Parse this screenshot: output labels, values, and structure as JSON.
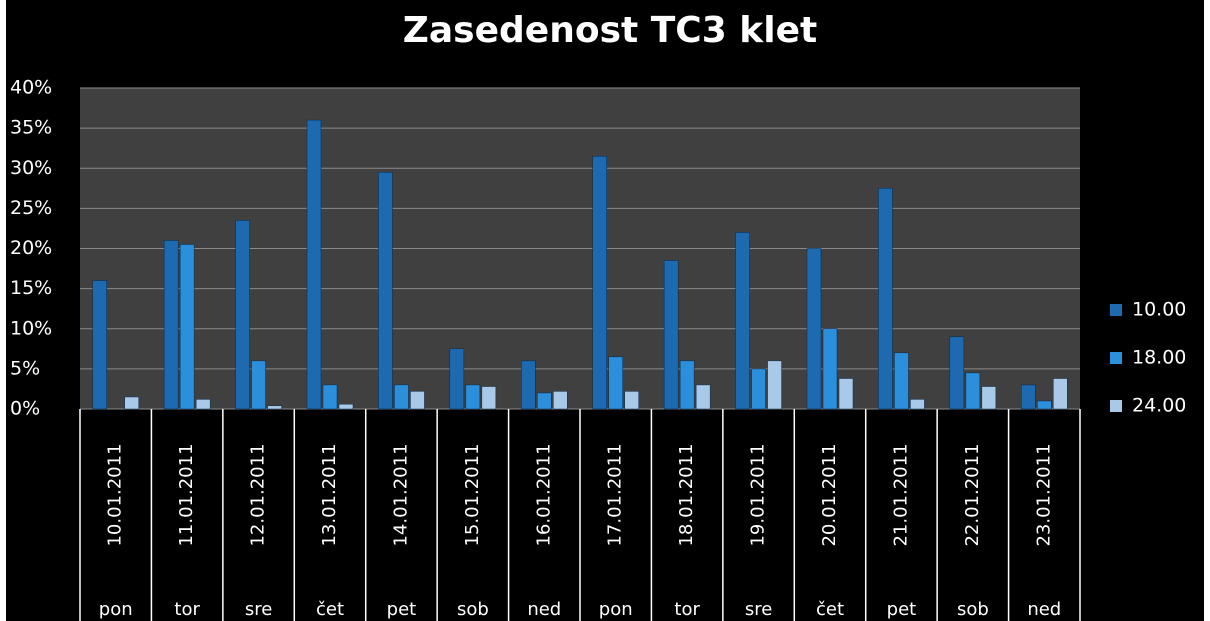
{
  "chart_data": {
    "type": "bar",
    "title": "Zasedenost TC3 klet",
    "categories": [
      "10.01.2011",
      "11.01.2011",
      "12.01.2011",
      "13.01.2011",
      "14.01.2011",
      "15.01.2011",
      "16.01.2011",
      "17.01.2011",
      "18.01.2011",
      "19.01.2011",
      "20.01.2011",
      "21.01.2011",
      "22.01.2011",
      "23.01.2011"
    ],
    "weekdays": [
      "pon",
      "tor",
      "sre",
      "čet",
      "pet",
      "sob",
      "ned",
      "pon",
      "tor",
      "sre",
      "čet",
      "pet",
      "sob",
      "ned"
    ],
    "series": [
      {
        "name": "10.00",
        "color": "#1d6ab0",
        "values": [
          16,
          21,
          23.5,
          36,
          29.5,
          7.5,
          6,
          31.5,
          18.5,
          22,
          20,
          27.5,
          9,
          3
        ]
      },
      {
        "name": "18.00",
        "color": "#2b8fdb",
        "values": [
          0,
          20.5,
          6,
          3,
          3,
          3,
          2,
          6.5,
          6,
          5,
          10,
          7,
          4.5,
          1
        ]
      },
      {
        "name": "24.00",
        "color": "#a9c9e9",
        "values": [
          1.5,
          1.2,
          0.4,
          0.6,
          2.2,
          2.8,
          2.2,
          2.2,
          3,
          6,
          3.8,
          1.2,
          2.8,
          3.8
        ]
      }
    ],
    "ylim": [
      0,
      40
    ],
    "yticks": [
      {
        "value": 0,
        "label": "0%"
      },
      {
        "value": 5,
        "label": "5%"
      },
      {
        "value": 10,
        "label": "10%"
      },
      {
        "value": 15,
        "label": "15%"
      },
      {
        "value": 20,
        "label": "20%"
      },
      {
        "value": 25,
        "label": "25%"
      },
      {
        "value": 30,
        "label": "30%"
      },
      {
        "value": 35,
        "label": "35%"
      },
      {
        "value": 40,
        "label": "40%"
      }
    ],
    "grid": true,
    "legend": "right"
  }
}
